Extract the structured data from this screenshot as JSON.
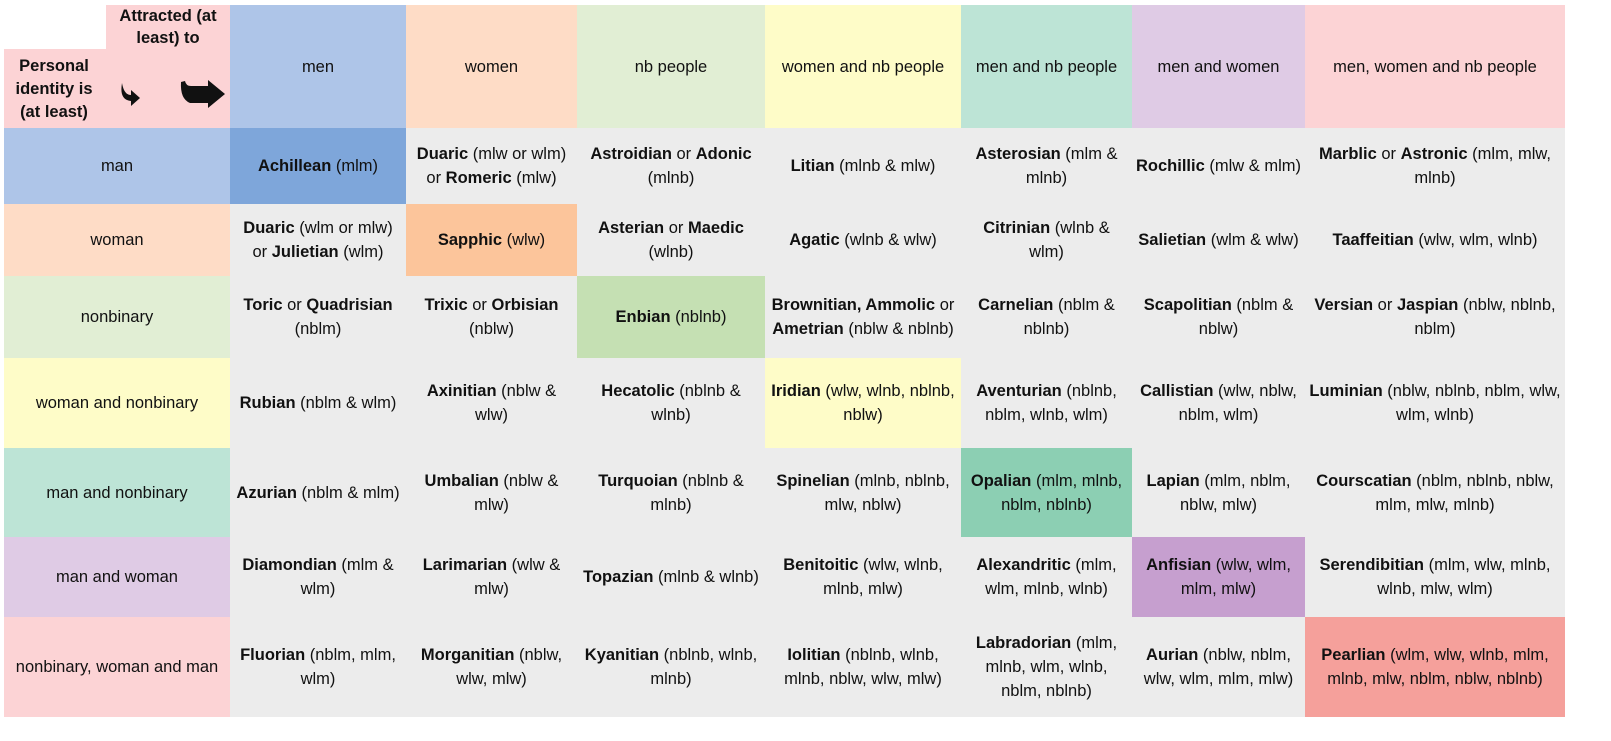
{
  "corner": {
    "attracted_label": "Attracted (at least) to",
    "identity_label": "Personal identity is (at least)",
    "down_arrow_icon": "curved-down-arrow-icon",
    "right_arrow_icon": "bent-right-arrow-icon"
  },
  "columns": [
    {
      "label": "men",
      "color": "#aec5e8",
      "diag": "#7ea6da"
    },
    {
      "label": "women",
      "color": "#fedcc6",
      "diag": "#fcc59b"
    },
    {
      "label": "nb people",
      "color": "#e1eed4",
      "diag": "#c5e0b3"
    },
    {
      "label": "women and nb people",
      "color": "#fefcc8",
      "diag": "#fefcc8"
    },
    {
      "label": "men and nb people",
      "color": "#bde4d6",
      "diag": "#8ccfb3"
    },
    {
      "label": "men and women",
      "color": "#dfcbe5",
      "diag": "#c69fcf"
    },
    {
      "label": "men, women and nb people",
      "color": "#fcd3d5",
      "diag": "#f5a09b"
    }
  ],
  "rows": [
    {
      "label": "man",
      "cells": [
        [
          {
            "t": "Achillean",
            "b": true
          },
          {
            "t": " (mlm)"
          }
        ],
        [
          {
            "t": "Duaric",
            "b": true
          },
          {
            "t": " (mlw or wlm) or "
          },
          {
            "t": "Romeric",
            "b": true
          },
          {
            "t": " (mlw)"
          }
        ],
        [
          {
            "t": "Astroidian",
            "b": true
          },
          {
            "t": " or "
          },
          {
            "t": "Adonic",
            "b": true
          },
          {
            "t": " (mlnb)"
          }
        ],
        [
          {
            "t": "Litian",
            "b": true
          },
          {
            "t": " (mlnb & mlw)"
          }
        ],
        [
          {
            "t": "Asterosian",
            "b": true
          },
          {
            "t": " (mlm & mlnb)"
          }
        ],
        [
          {
            "t": "Rochillic",
            "b": true
          },
          {
            "t": " (mlw & mlm)"
          }
        ],
        [
          {
            "t": "Marblic",
            "b": true
          },
          {
            "t": " or "
          },
          {
            "t": "Astronic",
            "b": true
          },
          {
            "t": " (mlm, mlw, mlnb)"
          }
        ]
      ]
    },
    {
      "label": "woman",
      "cells": [
        [
          {
            "t": "Duaric",
            "b": true
          },
          {
            "t": " (wlm or mlw) or "
          },
          {
            "t": "Julietian",
            "b": true
          },
          {
            "t": " (wlm)"
          }
        ],
        [
          {
            "t": "Sapphic",
            "b": true
          },
          {
            "t": " (wlw)"
          }
        ],
        [
          {
            "t": "Asterian",
            "b": true
          },
          {
            "t": " or "
          },
          {
            "t": "Maedic",
            "b": true
          },
          {
            "t": " (wlnb)"
          }
        ],
        [
          {
            "t": "Agatic",
            "b": true
          },
          {
            "t": " (wlnb & wlw)"
          }
        ],
        [
          {
            "t": "Citrinian",
            "b": true
          },
          {
            "t": " (wlnb & wlm)"
          }
        ],
        [
          {
            "t": "Salietian",
            "b": true
          },
          {
            "t": " (wlm & wlw)"
          }
        ],
        [
          {
            "t": "Taaffeitian",
            "b": true
          },
          {
            "t": " (wlw, wlm, wlnb)"
          }
        ]
      ]
    },
    {
      "label": "nonbinary",
      "cells": [
        [
          {
            "t": "Toric",
            "b": true
          },
          {
            "t": " or "
          },
          {
            "t": "Quadrisian",
            "b": true
          },
          {
            "t": " (nblm)"
          }
        ],
        [
          {
            "t": "Trixic",
            "b": true
          },
          {
            "t": " or "
          },
          {
            "t": "Orbisian",
            "b": true
          },
          {
            "t": " (nblw)"
          }
        ],
        [
          {
            "t": "Enbian",
            "b": true
          },
          {
            "t": " (nblnb)"
          }
        ],
        [
          {
            "t": "Brownitian, Ammolic",
            "b": true
          },
          {
            "t": " or "
          },
          {
            "t": "Ametrian",
            "b": true
          },
          {
            "t": " (nblw & nblnb)"
          }
        ],
        [
          {
            "t": "Carnelian",
            "b": true
          },
          {
            "t": " (nblm & nblnb)"
          }
        ],
        [
          {
            "t": "Scapolitian",
            "b": true
          },
          {
            "t": " (nblm & nblw)"
          }
        ],
        [
          {
            "t": "Versian",
            "b": true
          },
          {
            "t": " or "
          },
          {
            "t": "Jaspian",
            "b": true
          },
          {
            "t": " (nblw, nblnb, nblm)"
          }
        ]
      ]
    },
    {
      "label": "woman and nonbinary",
      "cells": [
        [
          {
            "t": "Rubian",
            "b": true
          },
          {
            "t": " (nblm & wlm)"
          }
        ],
        [
          {
            "t": "Axinitian",
            "b": true
          },
          {
            "t": " (nblw & wlw)"
          }
        ],
        [
          {
            "t": "Hecatolic",
            "b": true
          },
          {
            "t": " (nblnb & wlnb)"
          }
        ],
        [
          {
            "t": "Iridian",
            "b": true
          },
          {
            "t": " (wlw, wlnb, nblnb, nblw)"
          }
        ],
        [
          {
            "t": "Aventurian",
            "b": true
          },
          {
            "t": " (nblnb, nblm, wlnb, wlm)"
          }
        ],
        [
          {
            "t": "Callistian",
            "b": true
          },
          {
            "t": " (wlw, nblw, nblm, wlm)"
          }
        ],
        [
          {
            "t": "Luminian",
            "b": true
          },
          {
            "t": " (nblw, nblnb, nblm, wlw, wlm, wlnb)"
          }
        ]
      ]
    },
    {
      "label": "man and nonbinary",
      "cells": [
        [
          {
            "t": "Azurian",
            "b": true
          },
          {
            "t": " (nblm & mlm)"
          }
        ],
        [
          {
            "t": "Umbalian",
            "b": true
          },
          {
            "t": " (nblw & mlw)"
          }
        ],
        [
          {
            "t": "Turquoian",
            "b": true
          },
          {
            "t": " (nblnb & mlnb)"
          }
        ],
        [
          {
            "t": "Spinelian",
            "b": true
          },
          {
            "t": " (mlnb, nblnb, mlw, nblw)"
          }
        ],
        [
          {
            "t": "Opalian",
            "b": true
          },
          {
            "t": " (mlm, mlnb, nblm, nblnb)"
          }
        ],
        [
          {
            "t": "Lapian",
            "b": true
          },
          {
            "t": " (mlm, nblm, nblw, mlw)"
          }
        ],
        [
          {
            "t": "Courscatian",
            "b": true
          },
          {
            "t": " (nblm, nblnb, nblw, mlm, mlw, mlnb)"
          }
        ]
      ]
    },
    {
      "label": "man and woman",
      "cells": [
        [
          {
            "t": "Diamondian",
            "b": true
          },
          {
            "t": " (mlm & wlm)"
          }
        ],
        [
          {
            "t": "Larimarian",
            "b": true
          },
          {
            "t": " (wlw & mlw)"
          }
        ],
        [
          {
            "t": "Topazian",
            "b": true
          },
          {
            "t": " (mlnb & wlnb)"
          }
        ],
        [
          {
            "t": "Benitoitic",
            "b": true
          },
          {
            "t": " (wlw, wlnb, mlnb, mlw)"
          }
        ],
        [
          {
            "t": "Alexandritic",
            "b": true
          },
          {
            "t": " (mlm, wlm, mlnb, wlnb)"
          }
        ],
        [
          {
            "t": "Anfisian",
            "b": true
          },
          {
            "t": " (wlw, wlm, mlm, mlw)"
          }
        ],
        [
          {
            "t": "Serendibitian",
            "b": true
          },
          {
            "t": " (mlm, wlw, mlnb, wlnb, mlw, wlm)"
          }
        ]
      ]
    },
    {
      "label": "nonbinary, woman and man",
      "cells": [
        [
          {
            "t": "Fluorian",
            "b": true
          },
          {
            "t": " (nblm, mlm, wlm)"
          }
        ],
        [
          {
            "t": "Morganitian",
            "b": true
          },
          {
            "t": " (nblw, wlw, mlw)"
          }
        ],
        [
          {
            "t": "Kyanitian",
            "b": true
          },
          {
            "t": " (nblnb, wlnb, mlnb)"
          }
        ],
        [
          {
            "t": "Iolitian",
            "b": true
          },
          {
            "t": " (nblnb, wlnb, mlnb, nblw, wlw, mlw)"
          }
        ],
        [
          {
            "t": "Labradorian",
            "b": true
          },
          {
            "t": " (mlm, mlnb, wlm, wlnb, nblm, nblnb)"
          }
        ],
        [
          {
            "t": "Aurian",
            "b": true
          },
          {
            "t": " (nblw, nblm, wlw, wlm, mlm, mlw)"
          }
        ],
        [
          {
            "t": "Pearlian",
            "b": true
          },
          {
            "t": " (wlm, wlw, wlnb, mlm, mlnb, mlw, nblm, nblw, nblnb)"
          }
        ]
      ]
    }
  ]
}
